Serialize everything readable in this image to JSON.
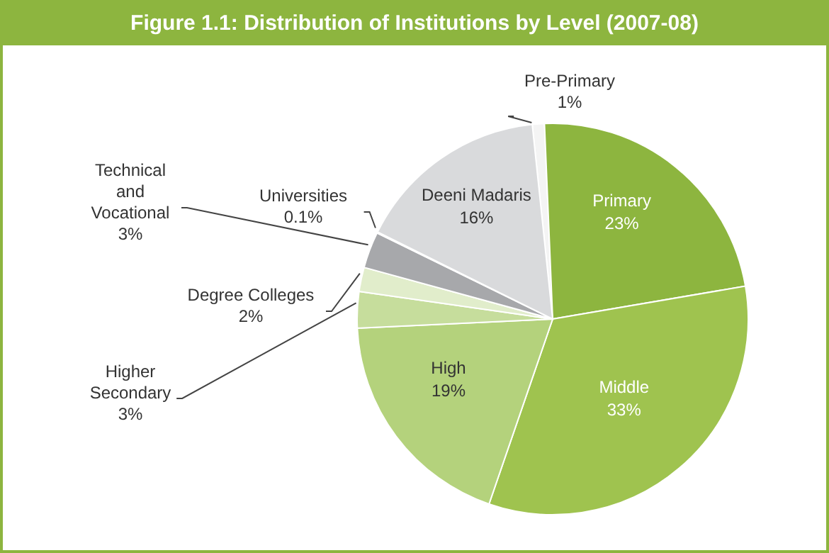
{
  "chart_data": {
    "type": "pie",
    "title": "Figure 1.1: Distribution of Institutions by Level (2007-08)",
    "categories": [
      "Pre-Primary",
      "Primary",
      "Middle",
      "High",
      "Higher Secondary",
      "Degree Colleges",
      "Technical and Vocational",
      "Universities",
      "Deeni Madaris"
    ],
    "values": [
      1,
      23,
      33,
      19,
      3,
      2,
      3,
      0.1,
      16
    ],
    "value_labels": [
      "1%",
      "23%",
      "33%",
      "19%",
      "3%",
      "2%",
      "3%",
      "0.1%",
      "16%"
    ],
    "colors": [
      "#f4f4f4",
      "#8db53f",
      "#9fc34f",
      "#b4d27c",
      "#c6dd9c",
      "#e1edcb",
      "#a7a8ab",
      "#bfc0c2",
      "#d9dadc"
    ]
  }
}
